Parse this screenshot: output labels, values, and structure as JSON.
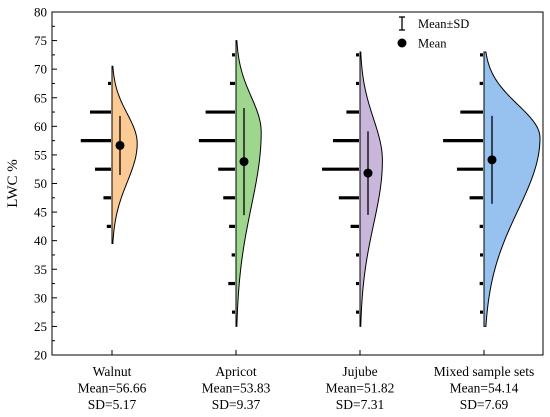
{
  "chart_data": {
    "type": "violin",
    "title": "",
    "xlabel": "",
    "ylabel": "LWC %",
    "ylim": [
      20,
      80
    ],
    "yticks": [
      20,
      25,
      30,
      35,
      40,
      45,
      50,
      55,
      60,
      65,
      70,
      75,
      80
    ],
    "grid": false,
    "legend": {
      "position": "top-right",
      "entries": [
        {
          "label": "Mean±SD",
          "marker": "errorbar"
        },
        {
          "label": "Mean",
          "marker": "dot"
        }
      ]
    },
    "groups": [
      {
        "name": "Walnut",
        "mean_text": "Mean=56.66",
        "sd_text": "SD=5.17",
        "mean": 56.66,
        "sd": 5.17,
        "color": "#FCCB95",
        "range": [
          39.5,
          70.5
        ],
        "density_peak": 57,
        "density_width": 0.45,
        "histogram": [
          {
            "center": 42.5,
            "rel": 0.1
          },
          {
            "center": 47.5,
            "rel": 0.18
          },
          {
            "center": 52.5,
            "rel": 0.38
          },
          {
            "center": 57.5,
            "rel": 0.72
          },
          {
            "center": 62.5,
            "rel": 0.5
          },
          {
            "center": 67.5,
            "rel": 0.06
          }
        ]
      },
      {
        "name": "Apricot",
        "mean_text": "Mean=53.83",
        "sd_text": "SD=9.37",
        "mean": 53.83,
        "sd": 9.37,
        "color": "#9FD68F",
        "range": [
          25,
          75
        ],
        "density_peak": 59,
        "density_width": 0.45,
        "histogram": [
          {
            "center": 27.5,
            "rel": 0.04
          },
          {
            "center": 32.5,
            "rel": 0.16
          },
          {
            "center": 37.5,
            "rel": 0.08
          },
          {
            "center": 42.5,
            "rel": 0.14
          },
          {
            "center": 47.5,
            "rel": 0.28
          },
          {
            "center": 52.5,
            "rel": 0.4
          },
          {
            "center": 57.5,
            "rel": 0.86
          },
          {
            "center": 62.5,
            "rel": 0.7
          },
          {
            "center": 67.5,
            "rel": 0.12
          },
          {
            "center": 72.5,
            "rel": 0.04
          }
        ]
      },
      {
        "name": "Jujube",
        "mean_text": "Mean=51.82",
        "sd_text": "SD=7.31",
        "mean": 51.82,
        "sd": 7.31,
        "color": "#C9B6DB",
        "range": [
          25,
          73
        ],
        "density_peak": 54,
        "density_width": 0.4,
        "histogram": [
          {
            "center": 27.5,
            "rel": 0.03
          },
          {
            "center": 32.5,
            "rel": 0.05
          },
          {
            "center": 37.5,
            "rel": 0.05
          },
          {
            "center": 42.5,
            "rel": 0.2
          },
          {
            "center": 47.5,
            "rel": 0.48
          },
          {
            "center": 52.5,
            "rel": 0.88
          },
          {
            "center": 57.5,
            "rel": 0.62
          },
          {
            "center": 62.5,
            "rel": 0.3
          },
          {
            "center": 67.5,
            "rel": 0.05
          },
          {
            "center": 72.5,
            "rel": 0.05
          }
        ]
      },
      {
        "name": "Mixed sample sets",
        "mean_text": "Mean=54.14",
        "sd_text": "SD=7.69",
        "mean": 54.14,
        "sd": 7.69,
        "color": "#97C1EE",
        "range": [
          25,
          73
        ],
        "density_peak": 58,
        "density_width": 1.0,
        "histogram": [
          {
            "center": 27.5,
            "rel": 0.05
          },
          {
            "center": 32.5,
            "rel": 0.08
          },
          {
            "center": 37.5,
            "rel": 0.06
          },
          {
            "center": 42.5,
            "rel": 0.08
          },
          {
            "center": 47.5,
            "rel": 0.32
          },
          {
            "center": 52.5,
            "rel": 0.62
          },
          {
            "center": 57.5,
            "rel": 0.95
          },
          {
            "center": 62.5,
            "rel": 0.54
          },
          {
            "center": 67.5,
            "rel": 0.08
          },
          {
            "center": 72.5,
            "rel": 0.05
          }
        ]
      }
    ]
  }
}
